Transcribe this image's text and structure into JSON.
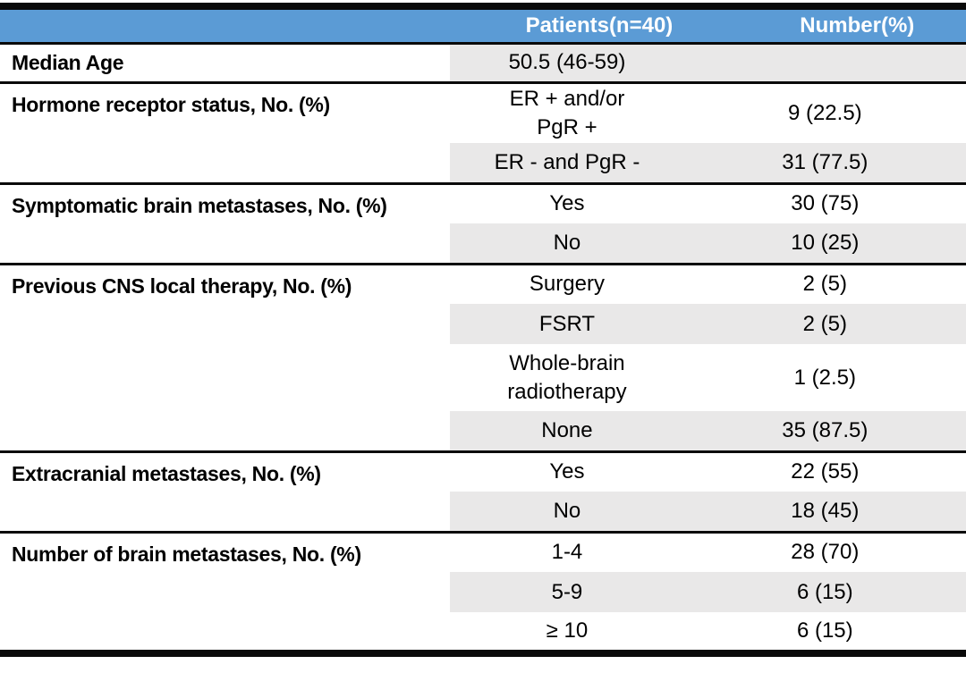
{
  "table": {
    "header": {
      "col1": "",
      "col2": "Patients(n=40)",
      "col3": "Number(%)"
    },
    "sections": [
      {
        "label": "Median Age",
        "rows": [
          {
            "value": "50.5 (46-59)",
            "number": ""
          }
        ]
      },
      {
        "label": "Hormone receptor status, No. (%)",
        "rows": [
          {
            "value": "ER + and/or\nPgR +",
            "number": "9 (22.5)"
          },
          {
            "value": "ER - and PgR -",
            "number": "31 (77.5)"
          }
        ]
      },
      {
        "label": "Symptomatic brain metastases, No. (%)",
        "rows": [
          {
            "value": "Yes",
            "number": "30 (75)"
          },
          {
            "value": "No",
            "number": "10 (25)"
          }
        ]
      },
      {
        "label": "Previous CNS local therapy, No. (%)",
        "rows": [
          {
            "value": "Surgery",
            "number": "2 (5)"
          },
          {
            "value": "FSRT",
            "number": "2 (5)"
          },
          {
            "value": "Whole-brain\nradiotherapy",
            "number": "1 (2.5)"
          },
          {
            "value": "None",
            "number": "35 (87.5)"
          }
        ]
      },
      {
        "label": "Extracranial metastases, No. (%)",
        "rows": [
          {
            "value": "Yes",
            "number": "22 (55)"
          },
          {
            "value": "No",
            "number": "18 (45)"
          }
        ]
      },
      {
        "label": "Number of brain metastases, No. (%)",
        "rows": [
          {
            "value": "1-4",
            "number": "28 (70)"
          },
          {
            "value": "5-9",
            "number": "6 (15)"
          },
          {
            "value": "≥ 10",
            "number": "6 (15)"
          }
        ]
      }
    ]
  },
  "colors": {
    "header_bg": "#5b9bd5",
    "header_text": "#ffffff",
    "band_bg": "#e9e8e8",
    "rule": "#0a0a0a",
    "text": "#000000"
  }
}
